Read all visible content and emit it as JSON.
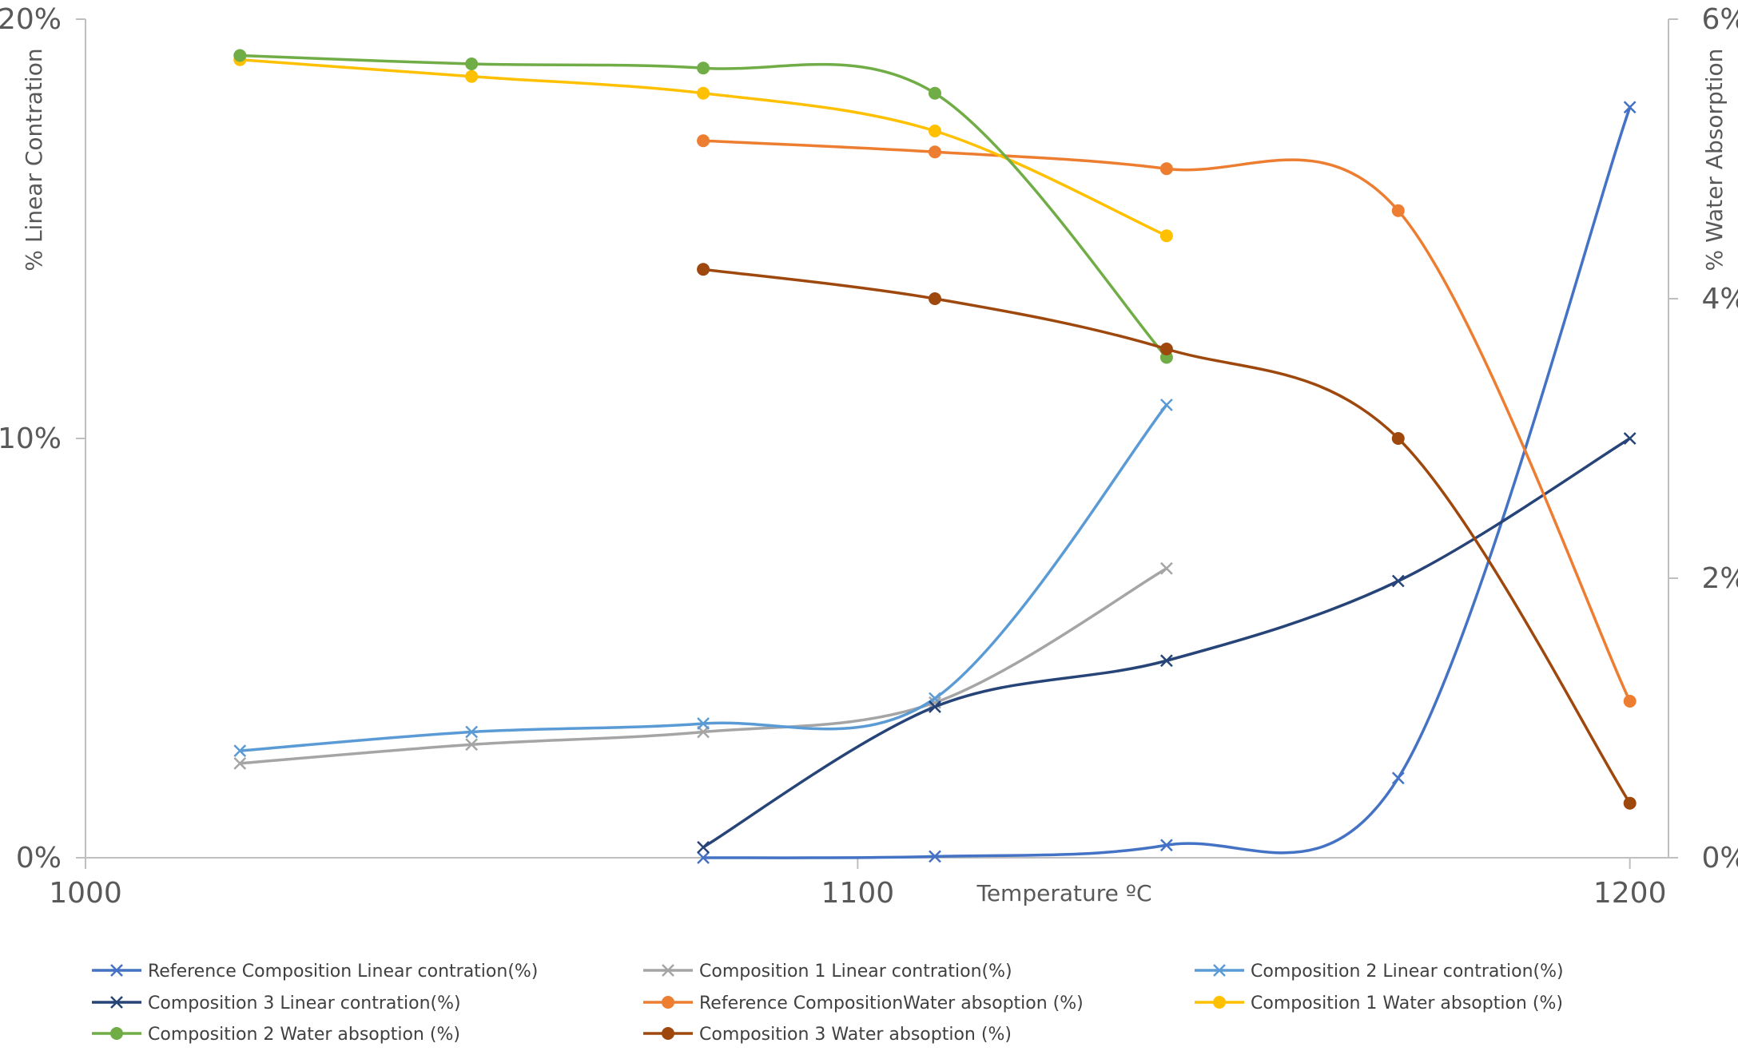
{
  "chart_data": {
    "type": "line",
    "xlabel": "Temperature ºC",
    "ylabel": "% Linear Contration",
    "y2label": "% Water Absorption",
    "xlim": [
      1000,
      1205
    ],
    "xticks": [
      "1000",
      "1100",
      "1200"
    ],
    "ylim": [
      0,
      20
    ],
    "yticks": [
      "0%",
      "10%",
      "20%"
    ],
    "y2lim": [
      0,
      6
    ],
    "y2ticks": [
      "0%",
      "2%",
      "4%",
      "6%"
    ],
    "grid": false,
    "legend_position": "bottom",
    "smooth": true,
    "series": [
      {
        "name": "Reference Composition Linear contration(%)",
        "axis": "left",
        "marker": "x",
        "color": "#4472C4",
        "x": [
          1080,
          1110,
          1140,
          1170,
          1200
        ],
        "values": [
          0,
          0.03,
          0.3,
          1.9,
          17.9
        ]
      },
      {
        "name": "Composition 1 Linear contration(%)",
        "axis": "left",
        "marker": "x",
        "color": "#A5A5A5",
        "x": [
          1020,
          1050,
          1080,
          1110,
          1140
        ],
        "values": [
          2.25,
          2.7,
          3.0,
          3.7,
          6.9
        ]
      },
      {
        "name": "Composition 2 Linear contration(%)",
        "axis": "left",
        "marker": "x",
        "color": "#5B9BD5",
        "x": [
          1020,
          1050,
          1080,
          1110,
          1140
        ],
        "values": [
          2.55,
          3.0,
          3.2,
          3.8,
          10.8
        ]
      },
      {
        "name": "Composition 3 Linear contration(%)",
        "axis": "left",
        "marker": "x",
        "color": "#264478",
        "x": [
          1080,
          1110,
          1140,
          1170,
          1200
        ],
        "values": [
          0.25,
          3.6,
          4.7,
          6.6,
          10.0
        ]
      },
      {
        "name": "Reference CompositionWater absoption (%)",
        "axis": "right",
        "marker": "circle",
        "color": "#ED7D31",
        "x": [
          1080,
          1110,
          1140,
          1170,
          1200
        ],
        "values": [
          5.13,
          5.05,
          4.93,
          4.63,
          1.12
        ]
      },
      {
        "name": "Composition 1 Water absoption (%)",
        "axis": "right",
        "marker": "circle",
        "color": "#FFC000",
        "x": [
          1020,
          1050,
          1080,
          1110,
          1140
        ],
        "values": [
          5.71,
          5.59,
          5.47,
          5.2,
          4.45
        ]
      },
      {
        "name": "Composition 2 Water absoption (%)",
        "axis": "right",
        "marker": "circle",
        "color": "#70AD47",
        "x": [
          1020,
          1050,
          1080,
          1110,
          1140
        ],
        "values": [
          5.74,
          5.68,
          5.65,
          5.47,
          3.58
        ]
      },
      {
        "name": "Composition 3 Water absoption (%)",
        "axis": "right",
        "marker": "circle",
        "color": "#9E480E",
        "x": [
          1080,
          1110,
          1140,
          1170,
          1200
        ],
        "values": [
          4.21,
          4.0,
          3.64,
          3.0,
          0.39
        ]
      }
    ]
  }
}
